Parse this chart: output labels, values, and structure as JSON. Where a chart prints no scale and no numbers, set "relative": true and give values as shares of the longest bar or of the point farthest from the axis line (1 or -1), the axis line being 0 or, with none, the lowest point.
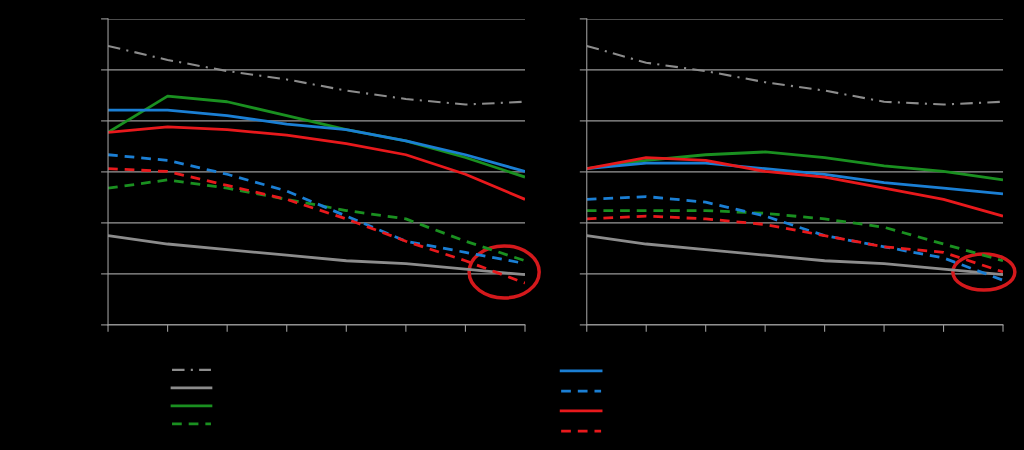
{
  "chart_data": [
    {
      "type": "line",
      "relative": true,
      "grid": "y",
      "categories": [
        null,
        null,
        null,
        null,
        null,
        null,
        null,
        null
      ],
      "series": [
        {
          "color": "#8c8c8c",
          "line_style": "dashdot",
          "values": [
            1.0,
            0.95,
            0.91,
            0.88,
            0.84,
            0.81,
            0.79,
            0.8
          ]
        },
        {
          "color": "#8c8c8c",
          "line_style": "solid",
          "values": [
            0.32,
            0.29,
            0.27,
            0.25,
            0.23,
            0.22,
            0.2,
            0.18
          ]
        },
        {
          "color": "#1a9020",
          "line_style": "solid",
          "values": [
            0.69,
            0.82,
            0.8,
            0.75,
            0.7,
            0.66,
            0.6,
            0.53
          ]
        },
        {
          "color": "#1a9020",
          "line_style": "dashed",
          "values": [
            0.49,
            0.52,
            0.49,
            0.45,
            0.41,
            0.38,
            0.3,
            0.23
          ]
        },
        {
          "color": "#1b7fd4",
          "line_style": "solid",
          "values": [
            0.77,
            0.77,
            0.75,
            0.72,
            0.7,
            0.66,
            0.61,
            0.55
          ]
        },
        {
          "color": "#1b7fd4",
          "line_style": "dashed",
          "values": [
            0.61,
            0.59,
            0.54,
            0.48,
            0.39,
            0.3,
            0.26,
            0.22
          ]
        },
        {
          "color": "#e8191c",
          "line_style": "solid",
          "values": [
            0.69,
            0.71,
            0.7,
            0.68,
            0.65,
            0.61,
            0.54,
            0.45
          ]
        },
        {
          "color": "#e8191c",
          "line_style": "dashed",
          "values": [
            0.56,
            0.55,
            0.5,
            0.45,
            0.38,
            0.3,
            0.23,
            0.15
          ]
        }
      ]
    },
    {
      "type": "line",
      "relative": true,
      "grid": "y",
      "categories": [
        null,
        null,
        null,
        null,
        null,
        null,
        null,
        null
      ],
      "series": [
        {
          "color": "#8c8c8c",
          "line_style": "dashdot",
          "values": [
            1.0,
            0.94,
            0.91,
            0.87,
            0.84,
            0.8,
            0.79,
            0.8
          ]
        },
        {
          "color": "#8c8c8c",
          "line_style": "solid",
          "values": [
            0.32,
            0.29,
            0.27,
            0.25,
            0.23,
            0.22,
            0.2,
            0.18
          ]
        },
        {
          "color": "#1a9020",
          "line_style": "solid",
          "values": [
            0.56,
            0.59,
            0.61,
            0.62,
            0.6,
            0.57,
            0.55,
            0.52
          ]
        },
        {
          "color": "#1a9020",
          "line_style": "dashed",
          "values": [
            0.41,
            0.41,
            0.41,
            0.4,
            0.38,
            0.35,
            0.29,
            0.23
          ]
        },
        {
          "color": "#1b7fd4",
          "line_style": "solid",
          "values": [
            0.56,
            0.58,
            0.58,
            0.56,
            0.54,
            0.51,
            0.49,
            0.47
          ]
        },
        {
          "color": "#1b7fd4",
          "line_style": "dashed",
          "values": [
            0.45,
            0.46,
            0.44,
            0.39,
            0.32,
            0.28,
            0.24,
            0.16
          ]
        },
        {
          "color": "#e8191c",
          "line_style": "solid",
          "values": [
            0.56,
            0.6,
            0.59,
            0.55,
            0.53,
            0.49,
            0.45,
            0.39
          ]
        },
        {
          "color": "#e8191c",
          "line_style": "dashed",
          "values": [
            0.38,
            0.39,
            0.38,
            0.36,
            0.32,
            0.28,
            0.26,
            0.19
          ]
        }
      ]
    }
  ]
}
